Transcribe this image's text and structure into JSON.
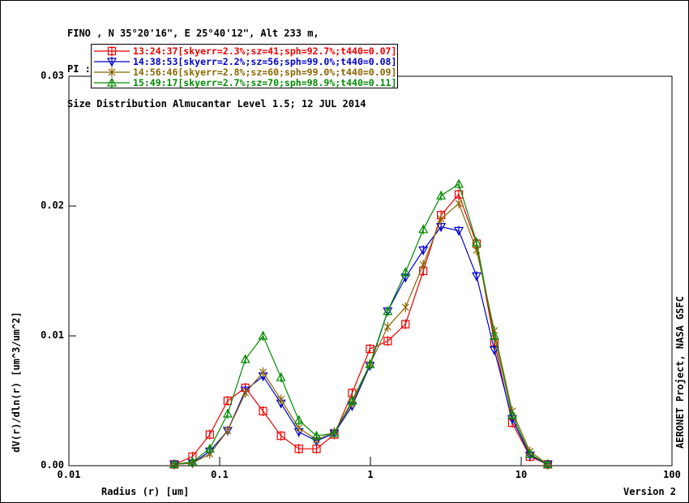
{
  "header": {
    "line1": "FINO , N 35°20'16\", E 25°40'12\", Alt 233 m,",
    "line2": "PI : Brent Holben, Brent.N.Holben@nasa.gov",
    "line3": "Size Distribution Almucantar Level 1.5; 12 JUL 2014"
  },
  "y_axis_title": "dV(r)/dln(r) [um^3/um^2]",
  "x_axis_title": "Radius (r) [um]",
  "credit": "AERONET Project, NASA GSFC",
  "version_label": "Version 2",
  "colors": {
    "red": "#ee0000",
    "blue": "#0000cc",
    "olive": "#8b6600",
    "green": "#008a00",
    "axis": "#000000"
  },
  "chart_data": {
    "type": "line",
    "title": "Size Distribution Almucantar Level 1.5; 12 JUL 2014",
    "xlabel": "Radius (r) [um]",
    "ylabel": "dV(r)/dln(r) [um^3/um^2]",
    "x_scale": "log",
    "xlim": [
      0.01,
      100
    ],
    "ylim": [
      0,
      0.03
    ],
    "grid": false,
    "legend_position": "top-left",
    "xticks": [
      {
        "v": 0.01,
        "label": "0.01"
      },
      {
        "v": 0.1,
        "label": "0.1"
      },
      {
        "v": 1,
        "label": "1"
      },
      {
        "v": 10,
        "label": "10"
      },
      {
        "v": 100,
        "label": "100"
      }
    ],
    "yticks": [
      {
        "v": 0.0,
        "label": "0.00"
      },
      {
        "v": 0.01,
        "label": "0.01"
      },
      {
        "v": 0.02,
        "label": "0.02"
      },
      {
        "v": 0.03,
        "label": "0.03"
      }
    ],
    "x": [
      0.05,
      0.066,
      0.086,
      0.113,
      0.148,
      0.194,
      0.255,
      0.335,
      0.439,
      0.576,
      0.756,
      0.992,
      1.302,
      1.708,
      2.241,
      2.94,
      3.857,
      5.061,
      6.641,
      8.713,
      11.432,
      15.0
    ],
    "series": [
      {
        "name": "13:24:37",
        "legend_label": "13:24:37[skyerr=2.3%;sz=41;sph=92.7%;t440=0.07]",
        "color": "#ee0000",
        "marker": "square",
        "values": [
          0.0001,
          0.0007,
          0.0024,
          0.005,
          0.006,
          0.0042,
          0.0023,
          0.0013,
          0.0013,
          0.0024,
          0.0056,
          0.009,
          0.0096,
          0.0109,
          0.015,
          0.0193,
          0.0209,
          0.0171,
          0.0095,
          0.0033,
          0.0007,
          0.0001
        ]
      },
      {
        "name": "14:38:53",
        "legend_label": "14:38:53[skyerr=2.2%;sz=56;sph=99.0%;t440=0.08]",
        "color": "#0000cc",
        "marker": "triangle-down",
        "values": [
          0.0001,
          0.0002,
          0.0011,
          0.0027,
          0.0058,
          0.0069,
          0.0048,
          0.0026,
          0.0019,
          0.0025,
          0.0046,
          0.0077,
          0.0119,
          0.0145,
          0.0166,
          0.0184,
          0.0181,
          0.0146,
          0.0089,
          0.0036,
          0.0008,
          0.0001
        ]
      },
      {
        "name": "14:56:46",
        "legend_label": "14:56:46[skyerr=2.8%;sz=60;sph=99.0%;t440=0.09]",
        "color": "#8b6600",
        "marker": "x",
        "values": [
          0.0001,
          0.0002,
          0.0009,
          0.0027,
          0.0056,
          0.0072,
          0.0051,
          0.0029,
          0.002,
          0.0026,
          0.0048,
          0.0078,
          0.0107,
          0.0122,
          0.0155,
          0.019,
          0.0202,
          0.0166,
          0.0104,
          0.0042,
          0.0011,
          0.0001
        ]
      },
      {
        "name": "15:49:17",
        "legend_label": "15:49:17[skyerr=2.7%;sz=70;sph=98.9%;t440=0.11]",
        "color": "#008a00",
        "marker": "triangle-up",
        "values": [
          0.0001,
          0.0003,
          0.0013,
          0.004,
          0.0082,
          0.01,
          0.0068,
          0.0035,
          0.0023,
          0.0025,
          0.005,
          0.0078,
          0.0119,
          0.0149,
          0.0182,
          0.0208,
          0.0217,
          0.0172,
          0.01,
          0.0039,
          0.0009,
          0.0001
        ]
      }
    ]
  }
}
